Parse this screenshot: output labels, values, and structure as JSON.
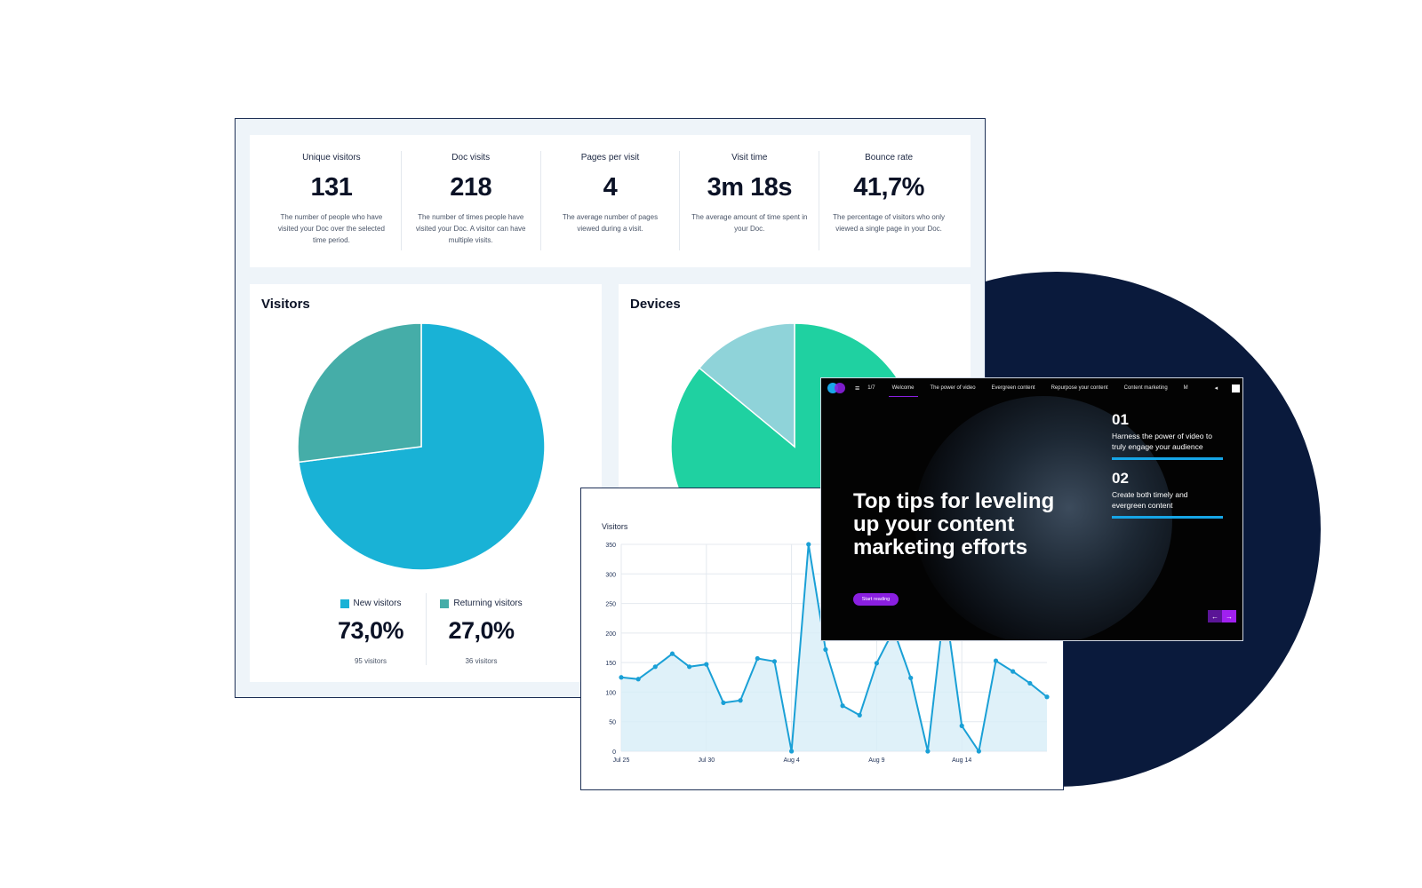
{
  "stats": [
    {
      "label": "Unique visitors",
      "value": "131",
      "desc": "The number of people who have visited your Doc over the selected time period."
    },
    {
      "label": "Doc visits",
      "value": "218",
      "desc": "The number of times people have visited your Doc. A visitor can have multiple visits."
    },
    {
      "label": "Pages per visit",
      "value": "4",
      "desc": "The average number of pages viewed during a visit."
    },
    {
      "label": "Visit time",
      "value": "3m 18s",
      "desc": "The average amount of time spent in your Doc."
    },
    {
      "label": "Bounce rate",
      "value": "41,7%",
      "desc": "The percentage of visitors who only viewed a single page in your Doc."
    }
  ],
  "visitors_card": {
    "title": "Visitors",
    "legend": [
      {
        "label": "New visitors",
        "value": "73,0%",
        "sub": "95 visitors",
        "color": "#19b2d6"
      },
      {
        "label": "Returning visitors",
        "value": "27,0%",
        "sub": "36 visitors",
        "color": "#45ada8"
      }
    ]
  },
  "devices_card": {
    "title": "Devices"
  },
  "line_panel": {
    "title": "Visitors"
  },
  "video": {
    "page": "1/7",
    "tabs": [
      "Welcome",
      "The power of video",
      "Evergreen content",
      "Repurpose your content",
      "Content marketing",
      "M"
    ],
    "heading": "Top tips for leveling up your content marketing efforts",
    "cta": "Start reading",
    "tips": [
      {
        "num": "01",
        "text": "Harness the power of video to truly engage your audience"
      },
      {
        "num": "02",
        "text": "Create both timely and evergreen content"
      }
    ]
  },
  "colors": {
    "navy": "#0a1a3c",
    "accent_blue": "#16a5e6",
    "purple": "#8a1fe0"
  },
  "chart_data": [
    {
      "type": "pie",
      "title": "Visitors",
      "labels": [
        "New visitors",
        "Returning visitors"
      ],
      "values": [
        73.0,
        27.0
      ],
      "colors": [
        "#19b2d6",
        "#45ada8"
      ]
    },
    {
      "type": "pie",
      "title": "Devices",
      "labels": [
        "",
        ""
      ],
      "values": [
        86,
        14
      ],
      "colors": [
        "#1fd1a1",
        "#8fd3d9"
      ],
      "note_partially_hidden": true
    },
    {
      "type": "area",
      "title": "Visitors",
      "ylim": [
        0,
        350
      ],
      "yticks": [
        0,
        50,
        100,
        150,
        200,
        250,
        300,
        350
      ],
      "xtick_labels": [
        "Jul 25",
        "Jul 30",
        "Aug 4",
        "Aug 9",
        "Aug 14"
      ],
      "xtick_index": [
        0,
        5,
        10,
        15,
        20
      ],
      "series": [
        {
          "values": [
            125,
            122,
            143,
            165,
            143,
            147,
            82,
            86,
            157,
            152,
            0,
            350,
            172,
            77,
            61,
            149,
            205,
            124,
            0,
            252,
            43,
            0,
            153,
            135,
            115,
            92
          ]
        }
      ]
    }
  ]
}
